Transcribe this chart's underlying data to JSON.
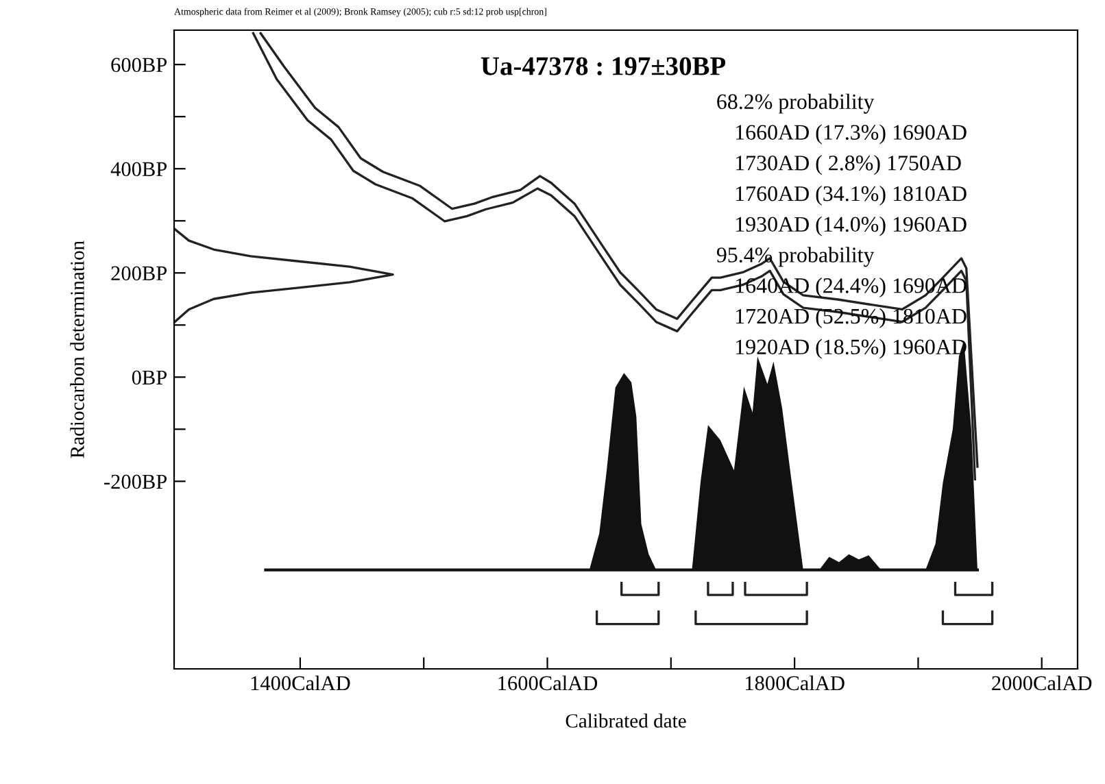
{
  "chart_data": {
    "type": "line",
    "title": "Ua-47378 : 197±30BP",
    "xlabel": "Calibrated date",
    "ylabel": "Radiocarbon determination",
    "xlim": [
      1298,
      2029
    ],
    "xticks": [
      {
        "value": 1400,
        "label": "1400CalAD"
      },
      {
        "value": 1500,
        "label": null
      },
      {
        "value": 1600,
        "label": "1600CalAD"
      },
      {
        "value": 1700,
        "label": null
      },
      {
        "value": 1800,
        "label": "1800CalAD"
      },
      {
        "value": 1900,
        "label": null
      },
      {
        "value": 2000,
        "label": "2000CalAD"
      }
    ],
    "ylim": [
      -560,
      666
    ],
    "yticks": [
      {
        "value": -200,
        "label": "-200BP"
      },
      {
        "value": -100,
        "label": null
      },
      {
        "value": 0,
        "label": "0BP"
      },
      {
        "value": 100,
        "label": null
      },
      {
        "value": 200,
        "label": "200BP"
      },
      {
        "value": 300,
        "label": null
      },
      {
        "value": 400,
        "label": "400BP"
      },
      {
        "value": 500,
        "label": null
      },
      {
        "value": 600,
        "label": "600BP"
      }
    ],
    "grid": false,
    "legend": false,
    "annotations": [
      "Atmospheric data from Reimer et al (2009); Bronk Ramsey (2005); cub r:5 sd:12 prob usp[chron]",
      "68.2% probability",
      "1660AD (17.3%) 1690AD",
      "1730AD ( 2.8%) 1750AD",
      "1760AD (34.1%) 1810AD",
      "1930AD (14.0%) 1960AD",
      "95.4% probability",
      "1640AD (24.4%) 1690AD",
      "1720AD (52.5%) 1810AD",
      "1920AD (18.5%) 1960AD"
    ],
    "series": [
      {
        "color": "#222222",
        "x": [
          1368,
          1387,
          1412,
          1431,
          1449,
          1467,
          1497,
          1523,
          1541,
          1556,
          1578,
          1594,
          1603,
          1622,
          1644,
          1659,
          1674,
          1688,
          1705,
          1718,
          1733,
          1740,
          1758,
          1773,
          1780,
          1791,
          1807,
          1835,
          1865,
          1887,
          1906,
          1920,
          1935,
          1939,
          1948
        ],
        "values": [
          660,
          596,
          517,
          480,
          420,
          394,
          367,
          323,
          333,
          346,
          359,
          386,
          373,
          333,
          254,
          201,
          165,
          130,
          112,
          149,
          191,
          191,
          201,
          217,
          228,
          183,
          157,
          149,
          138,
          130,
          157,
          191,
          228,
          209,
          -172
        ]
      },
      {
        "color": "#222222",
        "x": [
          1362,
          1381,
          1406,
          1425,
          1443,
          1461,
          1491,
          1517,
          1535,
          1550,
          1572,
          1592,
          1603,
          1622,
          1644,
          1659,
          1674,
          1688,
          1705,
          1718,
          1733,
          1740,
          1758,
          1773,
          1780,
          1791,
          1807,
          1835,
          1865,
          1887,
          1906,
          1920,
          1935,
          1939,
          1946
        ],
        "values": [
          660,
          572,
          493,
          456,
          396,
          370,
          343,
          299,
          309,
          322,
          335,
          362,
          349,
          309,
          230,
          177,
          141,
          106,
          88,
          125,
          167,
          167,
          177,
          193,
          204,
          159,
          133,
          125,
          114,
          106,
          133,
          167,
          204,
          185,
          -196
        ]
      },
      {
        "color": "#222222",
        "x": [
          1298,
          1310,
          1330,
          1360,
          1400,
          1440,
          1475,
          1440,
          1400,
          1360,
          1330,
          1310,
          1298
        ],
        "values": [
          285,
          262,
          245,
          232,
          222,
          212,
          197,
          182,
          172,
          162,
          150,
          130,
          105
        ]
      },
      {
        "type": "area",
        "color": "#111111",
        "x": [
          1372,
          1634,
          1642,
          1648,
          1655,
          1662,
          1668,
          1672,
          1676,
          1682,
          1688,
          1717,
          1724,
          1730,
          1740,
          1751,
          1759,
          1766,
          1770,
          1778,
          1783,
          1790,
          1797,
          1807,
          1820,
          1828,
          1836,
          1844,
          1852,
          1860,
          1870,
          1906,
          1914,
          1920,
          1928,
          1933,
          1937,
          1943,
          1948
        ],
        "values": [
          -370,
          -370,
          -300,
          -179,
          -20,
          8,
          -10,
          -76,
          -282,
          -340,
          -370,
          -370,
          -200,
          -92,
          -121,
          -179,
          -18,
          -68,
          40,
          -13,
          30,
          -60,
          -189,
          -370,
          -370,
          -345,
          -355,
          -340,
          -350,
          -342,
          -370,
          -370,
          -320,
          -203,
          -100,
          40,
          70,
          -100,
          -370
        ]
      },
      {
        "type": "line",
        "color": "#222222",
        "x": [
          1660,
          1660,
          1690,
          1690
        ],
        "values": [
          -395,
          -418,
          -418,
          -395
        ]
      },
      {
        "type": "line",
        "color": "#222222",
        "x": [
          1730,
          1730,
          1750,
          1750
        ],
        "values": [
          -395,
          -418,
          -418,
          -395
        ]
      },
      {
        "type": "line",
        "color": "#222222",
        "x": [
          1760,
          1760,
          1810,
          1810
        ],
        "values": [
          -395,
          -418,
          -418,
          -395
        ]
      },
      {
        "type": "line",
        "color": "#222222",
        "x": [
          1930,
          1930,
          1960,
          1960
        ],
        "values": [
          -395,
          -418,
          -418,
          -395
        ]
      },
      {
        "type": "line",
        "color": "#222222",
        "x": [
          1640,
          1640,
          1690,
          1690
        ],
        "values": [
          -450,
          -474,
          -474,
          -450
        ]
      },
      {
        "type": "line",
        "color": "#222222",
        "x": [
          1720,
          1720,
          1810,
          1810
        ],
        "values": [
          -450,
          -474,
          -474,
          -450
        ]
      },
      {
        "type": "line",
        "color": "#222222",
        "x": [
          1920,
          1920,
          1960,
          1960
        ],
        "values": [
          -450,
          -474,
          -474,
          -450
        ]
      }
    ]
  }
}
